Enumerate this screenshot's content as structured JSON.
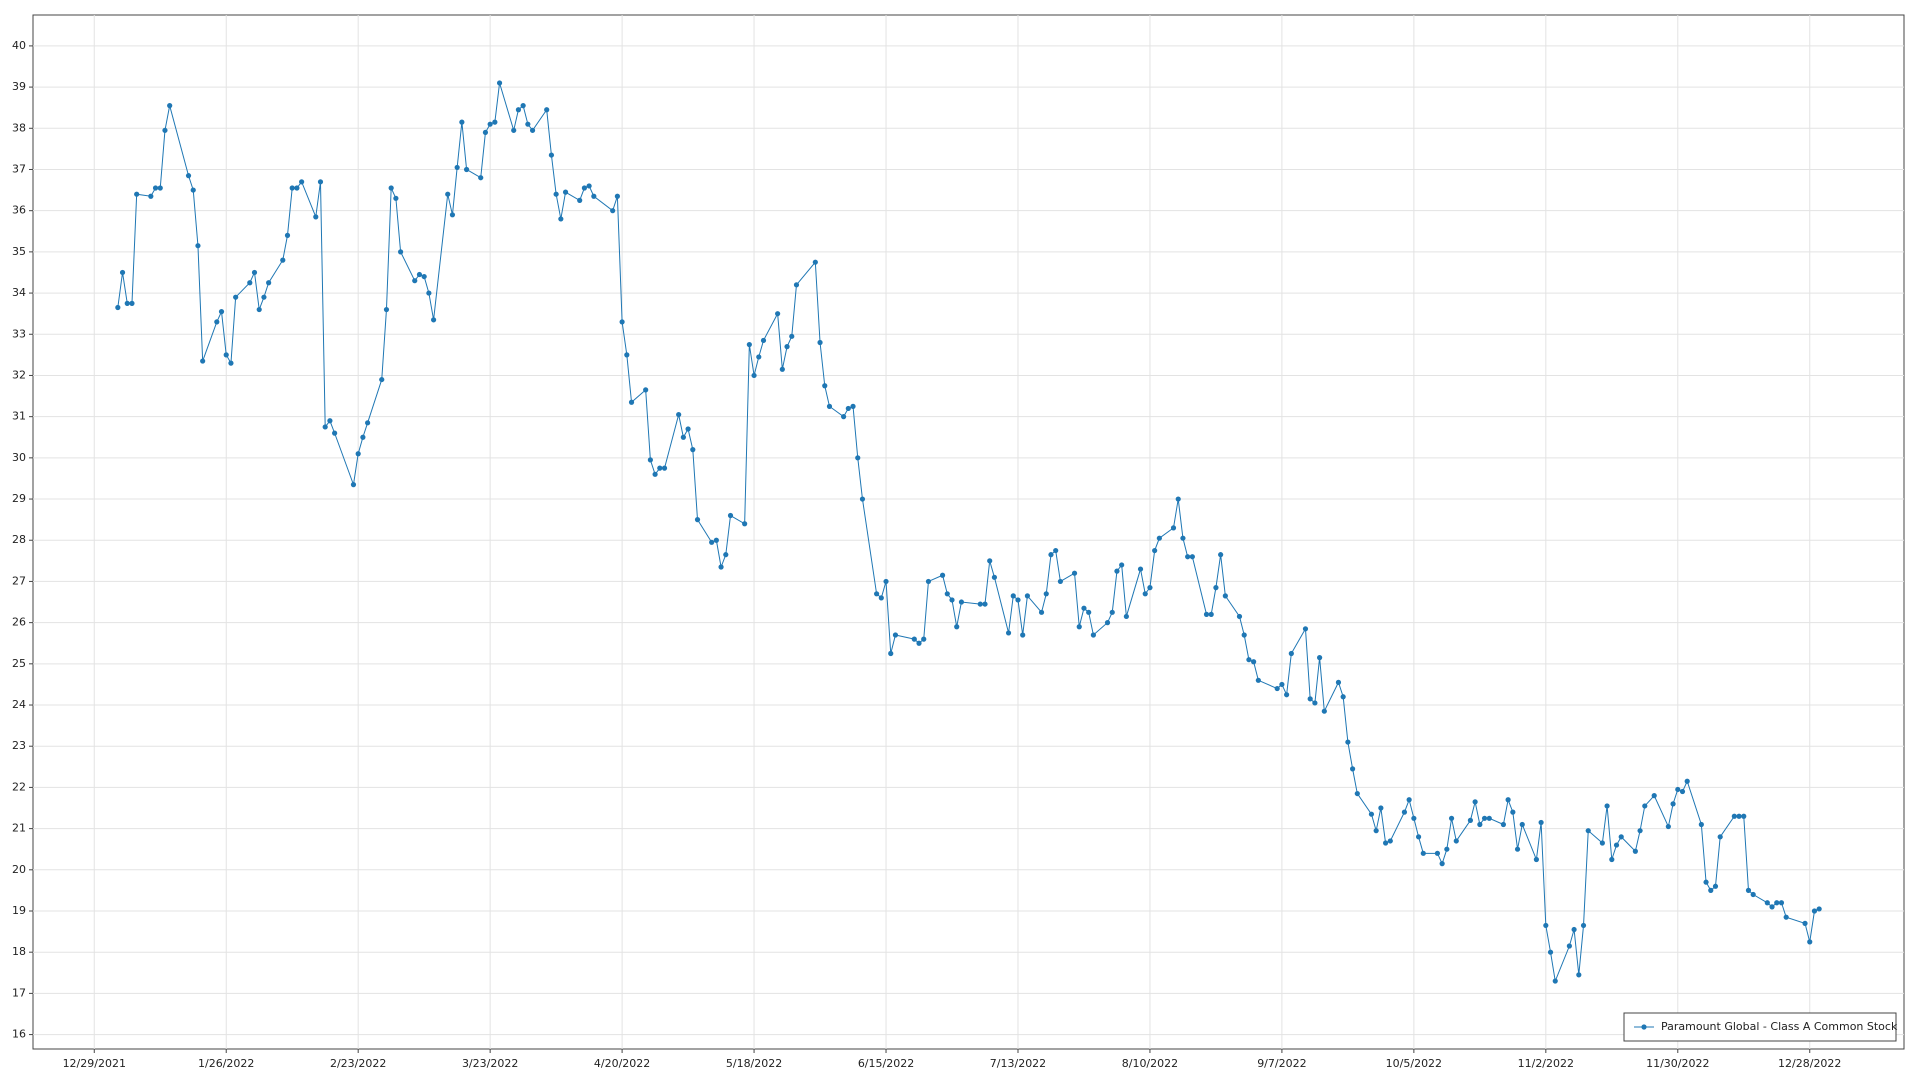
{
  "chart_data": {
    "type": "line",
    "xlim": [
      "2021-12-16",
      "2023-01-17"
    ],
    "ylim": [
      15.65,
      40.75
    ],
    "grid": true,
    "legend": "lower right",
    "xticks": [
      {
        "value": "2021-12-29",
        "label": "12/29/2021"
      },
      {
        "value": "2022-01-26",
        "label": "1/26/2022"
      },
      {
        "value": "2022-02-23",
        "label": "2/23/2022"
      },
      {
        "value": "2022-03-23",
        "label": "3/23/2022"
      },
      {
        "value": "2022-04-20",
        "label": "4/20/2022"
      },
      {
        "value": "2022-05-18",
        "label": "5/18/2022"
      },
      {
        "value": "2022-06-15",
        "label": "6/15/2022"
      },
      {
        "value": "2022-07-13",
        "label": "7/13/2022"
      },
      {
        "value": "2022-08-10",
        "label": "8/10/2022"
      },
      {
        "value": "2022-09-07",
        "label": "9/7/2022"
      },
      {
        "value": "2022-10-05",
        "label": "10/5/2022"
      },
      {
        "value": "2022-11-02",
        "label": "11/2/2022"
      },
      {
        "value": "2022-11-30",
        "label": "11/30/2022"
      },
      {
        "value": "2022-12-28",
        "label": "12/28/2022"
      }
    ],
    "yticks": [
      16,
      17,
      18,
      19,
      20,
      21,
      22,
      23,
      24,
      25,
      26,
      27,
      28,
      29,
      30,
      31,
      32,
      33,
      34,
      35,
      36,
      37,
      38,
      39,
      40
    ],
    "x": [
      "2022-01-03",
      "2022-01-04",
      "2022-01-05",
      "2022-01-06",
      "2022-01-07",
      "2022-01-10",
      "2022-01-11",
      "2022-01-12",
      "2022-01-13",
      "2022-01-14",
      "2022-01-18",
      "2022-01-19",
      "2022-01-20",
      "2022-01-21",
      "2022-01-24",
      "2022-01-25",
      "2022-01-26",
      "2022-01-27",
      "2022-01-28",
      "2022-01-31",
      "2022-02-01",
      "2022-02-02",
      "2022-02-03",
      "2022-02-04",
      "2022-02-07",
      "2022-02-08",
      "2022-02-09",
      "2022-02-10",
      "2022-02-11",
      "2022-02-14",
      "2022-02-15",
      "2022-02-16",
      "2022-02-17",
      "2022-02-18",
      "2022-02-22",
      "2022-02-23",
      "2022-02-24",
      "2022-02-25",
      "2022-02-28",
      "2022-03-01",
      "2022-03-02",
      "2022-03-03",
      "2022-03-04",
      "2022-03-07",
      "2022-03-08",
      "2022-03-09",
      "2022-03-10",
      "2022-03-11",
      "2022-03-14",
      "2022-03-15",
      "2022-03-16",
      "2022-03-17",
      "2022-03-18",
      "2022-03-21",
      "2022-03-22",
      "2022-03-23",
      "2022-03-24",
      "2022-03-25",
      "2022-03-28",
      "2022-03-29",
      "2022-03-30",
      "2022-03-31",
      "2022-04-01",
      "2022-04-04",
      "2022-04-05",
      "2022-04-06",
      "2022-04-07",
      "2022-04-08",
      "2022-04-11",
      "2022-04-12",
      "2022-04-13",
      "2022-04-14",
      "2022-04-18",
      "2022-04-19",
      "2022-04-20",
      "2022-04-21",
      "2022-04-22",
      "2022-04-25",
      "2022-04-26",
      "2022-04-27",
      "2022-04-28",
      "2022-04-29",
      "2022-05-02",
      "2022-05-03",
      "2022-05-04",
      "2022-05-05",
      "2022-05-06",
      "2022-05-09",
      "2022-05-10",
      "2022-05-11",
      "2022-05-12",
      "2022-05-13",
      "2022-05-16",
      "2022-05-17",
      "2022-05-18",
      "2022-05-19",
      "2022-05-20",
      "2022-05-23",
      "2022-05-24",
      "2022-05-25",
      "2022-05-26",
      "2022-05-27",
      "2022-05-31",
      "2022-06-01",
      "2022-06-02",
      "2022-06-03",
      "2022-06-06",
      "2022-06-07",
      "2022-06-08",
      "2022-06-09",
      "2022-06-10",
      "2022-06-13",
      "2022-06-14",
      "2022-06-15",
      "2022-06-16",
      "2022-06-17",
      "2022-06-21",
      "2022-06-22",
      "2022-06-23",
      "2022-06-24",
      "2022-06-27",
      "2022-06-28",
      "2022-06-29",
      "2022-06-30",
      "2022-07-01",
      "2022-07-05",
      "2022-07-06",
      "2022-07-07",
      "2022-07-08",
      "2022-07-11",
      "2022-07-12",
      "2022-07-13",
      "2022-07-14",
      "2022-07-15",
      "2022-07-18",
      "2022-07-19",
      "2022-07-20",
      "2022-07-21",
      "2022-07-22",
      "2022-07-25",
      "2022-07-26",
      "2022-07-27",
      "2022-07-28",
      "2022-07-29",
      "2022-08-01",
      "2022-08-02",
      "2022-08-03",
      "2022-08-04",
      "2022-08-05",
      "2022-08-08",
      "2022-08-09",
      "2022-08-10",
      "2022-08-11",
      "2022-08-12",
      "2022-08-15",
      "2022-08-16",
      "2022-08-17",
      "2022-08-18",
      "2022-08-19",
      "2022-08-22",
      "2022-08-23",
      "2022-08-24",
      "2022-08-25",
      "2022-08-26",
      "2022-08-29",
      "2022-08-30",
      "2022-08-31",
      "2022-09-01",
      "2022-09-02",
      "2022-09-06",
      "2022-09-07",
      "2022-09-08",
      "2022-09-09",
      "2022-09-12",
      "2022-09-13",
      "2022-09-14",
      "2022-09-15",
      "2022-09-16",
      "2022-09-19",
      "2022-09-20",
      "2022-09-21",
      "2022-09-22",
      "2022-09-23",
      "2022-09-26",
      "2022-09-27",
      "2022-09-28",
      "2022-09-29",
      "2022-09-30",
      "2022-10-03",
      "2022-10-04",
      "2022-10-05",
      "2022-10-06",
      "2022-10-07",
      "2022-10-10",
      "2022-10-11",
      "2022-10-12",
      "2022-10-13",
      "2022-10-14",
      "2022-10-17",
      "2022-10-18",
      "2022-10-19",
      "2022-10-20",
      "2022-10-21",
      "2022-10-24",
      "2022-10-25",
      "2022-10-26",
      "2022-10-27",
      "2022-10-28",
      "2022-10-31",
      "2022-11-01",
      "2022-11-02",
      "2022-11-03",
      "2022-11-04",
      "2022-11-07",
      "2022-11-08",
      "2022-11-09",
      "2022-11-10",
      "2022-11-11",
      "2022-11-14",
      "2022-11-15",
      "2022-11-16",
      "2022-11-17",
      "2022-11-18",
      "2022-11-21",
      "2022-11-22",
      "2022-11-23",
      "2022-11-25",
      "2022-11-28",
      "2022-11-29",
      "2022-11-30",
      "2022-12-01",
      "2022-12-02",
      "2022-12-05",
      "2022-12-06",
      "2022-12-07",
      "2022-12-08",
      "2022-12-09",
      "2022-12-12",
      "2022-12-13",
      "2022-12-14",
      "2022-12-15",
      "2022-12-16",
      "2022-12-19",
      "2022-12-20",
      "2022-12-21",
      "2022-12-22",
      "2022-12-23",
      "2022-12-27",
      "2022-12-28",
      "2022-12-29",
      "2022-12-30"
    ],
    "series": [
      {
        "name": "Paramount Global - Class A Common Stock",
        "color": "#1f77b4",
        "values": [
          33.65,
          34.5,
          33.75,
          33.75,
          36.4,
          36.35,
          36.55,
          36.55,
          37.95,
          38.55,
          36.85,
          36.5,
          35.15,
          32.35,
          33.3,
          33.55,
          32.5,
          32.3,
          33.9,
          34.25,
          34.5,
          33.6,
          33.9,
          34.25,
          34.8,
          35.4,
          36.55,
          36.55,
          36.7,
          35.85,
          36.7,
          30.75,
          30.9,
          30.6,
          29.35,
          30.1,
          30.5,
          30.85,
          31.9,
          33.6,
          36.55,
          36.3,
          35.0,
          34.3,
          34.45,
          34.4,
          34.0,
          33.35,
          36.4,
          35.9,
          37.05,
          38.15,
          37.0,
          36.8,
          37.9,
          38.1,
          38.15,
          39.1,
          37.95,
          38.45,
          38.55,
          38.1,
          37.95,
          38.45,
          37.35,
          36.4,
          35.8,
          36.45,
          36.25,
          36.55,
          36.6,
          36.35,
          36.0,
          36.35,
          33.3,
          32.5,
          31.35,
          31.65,
          29.95,
          29.6,
          29.75,
          29.75,
          31.05,
          30.5,
          30.7,
          30.2,
          28.5,
          27.95,
          28.0,
          27.35,
          27.65,
          28.6,
          28.4,
          32.75,
          32.0,
          32.45,
          32.85,
          33.5,
          32.15,
          32.7,
          32.95,
          34.2,
          34.75,
          32.8,
          31.75,
          31.25,
          31.0,
          31.2,
          31.25,
          30.0,
          29.0,
          26.7,
          26.6,
          27.0,
          25.25,
          25.7,
          25.6,
          25.5,
          25.6,
          27.0,
          27.15,
          26.7,
          26.55,
          25.9,
          26.5,
          26.45,
          26.45,
          27.5,
          27.1,
          25.75,
          26.65,
          26.55,
          25.7,
          26.65,
          26.25,
          26.7,
          27.65,
          27.75,
          27.0,
          27.2,
          25.9,
          26.35,
          26.25,
          25.7,
          26.0,
          26.25,
          27.25,
          27.4,
          26.15,
          27.3,
          26.7,
          26.85,
          27.75,
          28.05,
          28.3,
          29.0,
          28.05,
          27.6,
          27.6,
          26.2,
          26.2,
          26.85,
          27.65,
          26.65,
          26.15,
          25.7,
          25.1,
          25.05,
          24.6,
          24.4,
          24.5,
          24.25,
          25.25,
          25.85,
          24.15,
          24.05,
          25.15,
          23.85,
          24.55,
          24.2,
          23.1,
          22.45,
          21.85,
          21.35,
          20.95,
          21.5,
          20.65,
          20.7,
          21.4,
          21.7,
          21.25,
          20.8,
          20.4,
          20.4,
          20.15,
          20.5,
          21.25,
          20.7,
          21.2,
          21.65,
          21.1,
          21.25,
          21.25,
          21.1,
          21.7,
          21.4,
          20.5,
          21.1,
          20.25,
          21.15,
          18.65,
          18.0,
          17.3,
          18.15,
          18.55,
          17.45,
          18.65,
          20.95,
          20.65,
          21.55,
          20.25,
          20.6,
          20.8,
          20.45,
          20.95,
          21.55,
          21.8,
          21.05,
          21.6,
          21.95,
          21.9,
          22.15,
          21.1,
          19.7,
          19.5,
          19.6,
          20.8,
          21.3,
          21.3,
          21.3,
          19.5,
          19.4,
          19.2,
          19.1,
          19.2,
          19.2,
          18.85,
          18.7,
          18.25,
          19.0,
          19.05
        ]
      }
    ]
  }
}
